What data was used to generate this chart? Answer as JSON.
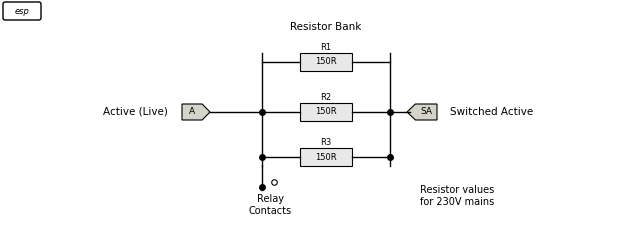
{
  "bg_color": "#ffffff",
  "fig_width": 6.4,
  "fig_height": 2.25,
  "dpi": 100,
  "resistor_bank_label": "Resistor Bank",
  "active_live_label": "Active (Live)",
  "switched_active_label": "Switched Active",
  "relay_label": "Relay\nContacts",
  "resistor_values_label": "Resistor values\nfor 230V mains",
  "r1_label": "R1",
  "r2_label": "R2",
  "r3_label": "R3",
  "r1_val": "150R",
  "r2_val": "150R",
  "r3_val": "150R",
  "line_color": "#000000",
  "res_fill": "#e8e8e8",
  "terminal_fill": "#d4d4c8"
}
